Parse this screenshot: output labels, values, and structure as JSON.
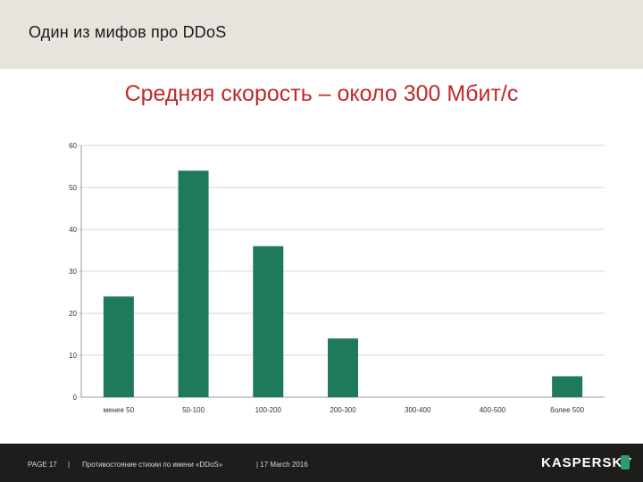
{
  "header": {
    "title": "Один из мифов про DDoS"
  },
  "slide": {
    "title": "Средняя скорость – около 300 Мбит/с"
  },
  "chart_data": {
    "type": "bar",
    "title": "",
    "xlabel": "",
    "ylabel": "",
    "categories": [
      "менее 50",
      "50-100",
      "100-200",
      "200-300",
      "300-400",
      "400-500",
      "более 500"
    ],
    "values": [
      24,
      54,
      36,
      14,
      0,
      0,
      5
    ],
    "ylim": [
      0,
      60
    ],
    "yticks": [
      0,
      10,
      20,
      30,
      40,
      50,
      60
    ],
    "grid": true,
    "bar_color": "#1f7a5c",
    "grid_color": "#d4d4d4"
  },
  "footer": {
    "page": "PAGE 17",
    "separator": "|",
    "document": "Противостояние стихии по имени «DDoS»",
    "date": "| 17 March 2016",
    "logo_text": "KASPERSKY",
    "logo_accent_color": "#2e9c6d"
  }
}
